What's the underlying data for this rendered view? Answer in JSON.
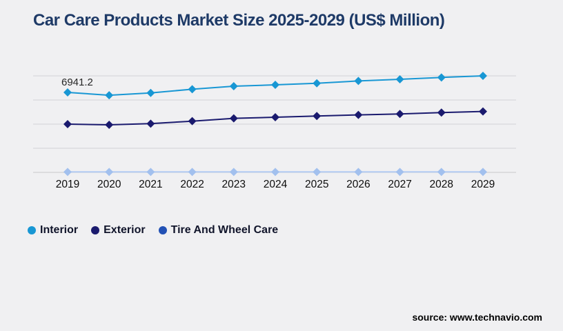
{
  "title": "Car Care Products Market Size 2025-2029 (US$ Million)",
  "source": "source: www.technavio.com",
  "colors": {
    "background": "#f0f0f2",
    "title": "#1e3a67",
    "gridline": "#d2d2d5",
    "axis_line": "#c7c7ca",
    "year_label": "#0d0d0d",
    "data_label": "#262626",
    "legend_text": "#10142a",
    "source_text": "#000000",
    "interior": "#1897d4",
    "exterior": "#1a1a6e",
    "tire_and_wheel_care_legend": "#2251b5",
    "tire_and_wheel_care_line": "#b3cbf3",
    "tire_and_wheel_care_marker": "#a2c0ee"
  },
  "legend": {
    "items": [
      {
        "label": "Interior",
        "color": "#1897d4"
      },
      {
        "label": "Exterior",
        "color": "#1a1a6e"
      },
      {
        "label": "Tire And Wheel Care",
        "color": "#2251b5"
      }
    ]
  },
  "chart_data": {
    "type": "line",
    "title": "Car Care Products Market Size 2025-2029 (US$ Million)",
    "x": [
      "2019",
      "2020",
      "2021",
      "2022",
      "2023",
      "2024",
      "2025",
      "2026",
      "2027",
      "2028",
      "2029"
    ],
    "series": [
      {
        "name": "Interior",
        "line_color": "#1897d4",
        "marker_color": "#1897d4",
        "marker": "diamond",
        "values": [
          6941.2,
          6700,
          6900,
          7220,
          7480,
          7600,
          7740,
          7940,
          8080,
          8240,
          8380
        ]
      },
      {
        "name": "Exterior",
        "line_color": "#1a1a6e",
        "marker_color": "#1a1a6e",
        "marker": "diamond",
        "values": [
          4190,
          4130,
          4230,
          4450,
          4690,
          4790,
          4890,
          4990,
          5070,
          5190,
          5290
        ]
      },
      {
        "name": "Tire And Wheel Care",
        "line_color": "#b3cbf3",
        "marker_color": "#a2c0ee",
        "marker": "diamond",
        "values": [
          40,
          40,
          40,
          40,
          40,
          40,
          40,
          40,
          40,
          40,
          40
        ]
      }
    ],
    "data_labels": [
      {
        "series": "Interior",
        "x": "2019",
        "text": "6941.2"
      }
    ],
    "ylim": [
      0,
      8380
    ],
    "grid": "horizontal-only",
    "gridline_count": 5,
    "y_axis_labels": false,
    "legend_position": "bottom-left"
  }
}
